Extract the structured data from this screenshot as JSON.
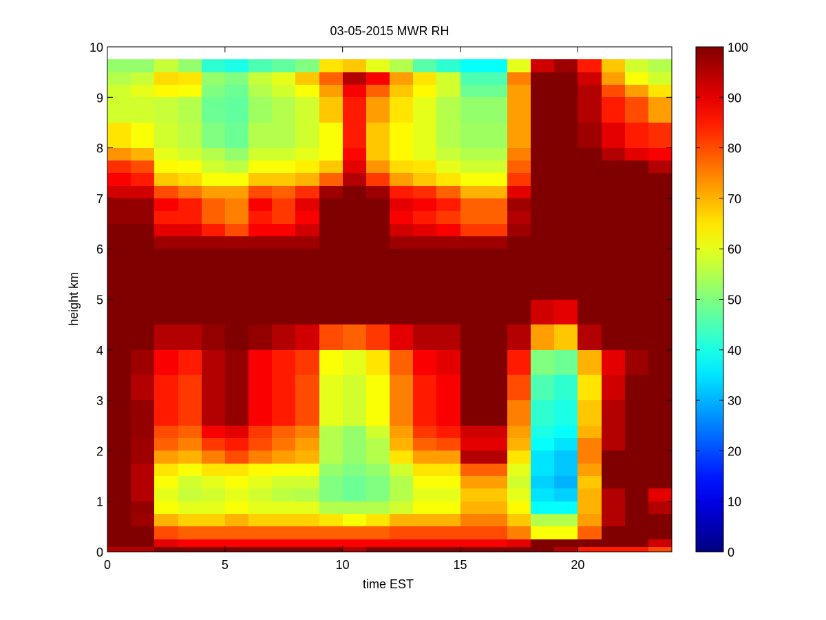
{
  "chart_data": {
    "type": "heatmap",
    "title": "03-05-2015 MWR RH",
    "xlabel": "time EST",
    "ylabel": "height km",
    "xlim": [
      0,
      24
    ],
    "ylim": [
      0,
      10
    ],
    "xticks": [
      "0",
      "5",
      "10",
      "15",
      "20"
    ],
    "yticks": [
      "0",
      "1",
      "2",
      "3",
      "4",
      "5",
      "6",
      "7",
      "8",
      "9",
      "10"
    ],
    "colorbar": {
      "ticks": [
        "0",
        "10",
        "20",
        "30",
        "40",
        "50",
        "60",
        "70",
        "80",
        "90",
        "100"
      ],
      "range": [
        0,
        100
      ],
      "colormap": "jet"
    },
    "x": [
      0,
      1,
      2,
      3,
      4,
      5,
      6,
      7,
      8,
      9,
      10,
      11,
      12,
      13,
      14,
      15,
      16,
      17,
      18,
      19,
      20,
      21,
      22,
      23
    ],
    "x_cell_width": 1,
    "y_edges": [
      0,
      0.1,
      0.25,
      0.5,
      0.75,
      1.0,
      1.25,
      1.5,
      1.75,
      2.0,
      2.25,
      2.5,
      3.0,
      3.5,
      4.0,
      4.5,
      5.0,
      5.5,
      6.0,
      6.25,
      6.5,
      6.75,
      7.0,
      7.25,
      7.5,
      7.75,
      8.0,
      8.5,
      9.0,
      9.25,
      9.5,
      9.75
    ],
    "values": [
      [
        95,
        95,
        100,
        100,
        100,
        100,
        100,
        100,
        100,
        100,
        95,
        100,
        100,
        100,
        100,
        100,
        100,
        100,
        100,
        95,
        85,
        85,
        85,
        80
      ],
      [
        100,
        100,
        90,
        88,
        88,
        88,
        88,
        88,
        88,
        88,
        88,
        88,
        88,
        88,
        88,
        88,
        88,
        90,
        100,
        100,
        100,
        100,
        100,
        92
      ],
      [
        100,
        100,
        80,
        78,
        78,
        78,
        78,
        78,
        78,
        78,
        78,
        78,
        80,
        80,
        80,
        80,
        80,
        75,
        62,
        62,
        78,
        100,
        100,
        100
      ],
      [
        100,
        97,
        70,
        67,
        67,
        70,
        67,
        67,
        67,
        65,
        62,
        65,
        70,
        70,
        70,
        75,
        75,
        68,
        55,
        55,
        72,
        95,
        100,
        100
      ],
      [
        100,
        98,
        62,
        60,
        60,
        62,
        60,
        60,
        60,
        55,
        55,
        55,
        58,
        62,
        62,
        70,
        70,
        63,
        38,
        38,
        70,
        95,
        100,
        95
      ],
      [
        100,
        95,
        60,
        57,
        58,
        60,
        58,
        56,
        55,
        50,
        48,
        50,
        55,
        60,
        60,
        68,
        68,
        60,
        35,
        33,
        70,
        95,
        100,
        90
      ],
      [
        100,
        95,
        62,
        58,
        60,
        62,
        60,
        58,
        58,
        50,
        48,
        50,
        55,
        62,
        62,
        72,
        72,
        58,
        33,
        30,
        68,
        100,
        100,
        100
      ],
      [
        100,
        95,
        65,
        62,
        65,
        65,
        63,
        62,
        62,
        52,
        50,
        52,
        58,
        65,
        65,
        78,
        78,
        60,
        35,
        32,
        72,
        100,
        100,
        100
      ],
      [
        100,
        97,
        72,
        70,
        75,
        80,
        75,
        72,
        70,
        55,
        52,
        55,
        65,
        72,
        72,
        95,
        95,
        65,
        35,
        32,
        75,
        100,
        100,
        100
      ],
      [
        100,
        97,
        78,
        75,
        82,
        85,
        80,
        76,
        72,
        55,
        52,
        55,
        70,
        78,
        80,
        90,
        90,
        70,
        38,
        35,
        75,
        95,
        100,
        100
      ],
      [
        100,
        98,
        80,
        78,
        88,
        90,
        82,
        78,
        75,
        55,
        52,
        58,
        72,
        82,
        85,
        92,
        92,
        72,
        40,
        38,
        70,
        95,
        100,
        100
      ],
      [
        100,
        98,
        85,
        82,
        95,
        98,
        88,
        85,
        80,
        60,
        58,
        62,
        75,
        85,
        88,
        100,
        100,
        75,
        42,
        40,
        68,
        95,
        100,
        100
      ],
      [
        100,
        95,
        85,
        82,
        95,
        98,
        88,
        85,
        80,
        60,
        58,
        62,
        75,
        85,
        88,
        100,
        100,
        80,
        45,
        42,
        65,
        92,
        100,
        100
      ],
      [
        100,
        97,
        88,
        85,
        95,
        98,
        88,
        85,
        82,
        62,
        60,
        65,
        78,
        88,
        90,
        100,
        100,
        85,
        50,
        48,
        70,
        90,
        97,
        100
      ],
      [
        100,
        100,
        95,
        95,
        98,
        100,
        98,
        95,
        92,
        80,
        78,
        82,
        90,
        95,
        95,
        100,
        100,
        95,
        72,
        68,
        95,
        100,
        100,
        100
      ],
      [
        100,
        100,
        100,
        100,
        100,
        100,
        100,
        100,
        100,
        100,
        100,
        100,
        100,
        100,
        100,
        100,
        100,
        100,
        92,
        90,
        100,
        100,
        100,
        100
      ],
      [
        100,
        100,
        100,
        100,
        100,
        100,
        100,
        100,
        100,
        100,
        100,
        100,
        100,
        100,
        100,
        100,
        100,
        100,
        100,
        100,
        100,
        100,
        100,
        100
      ],
      [
        100,
        100,
        100,
        100,
        100,
        100,
        100,
        100,
        100,
        100,
        100,
        100,
        100,
        100,
        100,
        100,
        100,
        100,
        100,
        100,
        100,
        100,
        100,
        100
      ],
      [
        100,
        100,
        97,
        97,
        97,
        97,
        97,
        97,
        97,
        100,
        100,
        100,
        97,
        97,
        97,
        97,
        97,
        100,
        100,
        100,
        100,
        100,
        100,
        100
      ],
      [
        100,
        100,
        90,
        90,
        85,
        80,
        88,
        88,
        92,
        100,
        100,
        100,
        92,
        90,
        88,
        82,
        82,
        97,
        100,
        100,
        100,
        100,
        100,
        100
      ],
      [
        98,
        98,
        85,
        85,
        78,
        75,
        85,
        82,
        88,
        100,
        100,
        100,
        88,
        85,
        82,
        78,
        78,
        95,
        100,
        100,
        100,
        100,
        100,
        100
      ],
      [
        98,
        98,
        88,
        85,
        78,
        75,
        88,
        82,
        90,
        100,
        100,
        100,
        90,
        88,
        85,
        78,
        78,
        97,
        100,
        100,
        100,
        100,
        100,
        100
      ],
      [
        92,
        92,
        80,
        76,
        72,
        72,
        80,
        78,
        83,
        97,
        100,
        97,
        85,
        83,
        78,
        70,
        70,
        90,
        100,
        100,
        100,
        100,
        100,
        100
      ],
      [
        88,
        85,
        68,
        66,
        62,
        62,
        68,
        68,
        70,
        78,
        95,
        82,
        72,
        68,
        65,
        62,
        62,
        82,
        100,
        100,
        100,
        100,
        100,
        100
      ],
      [
        83,
        80,
        63,
        62,
        58,
        56,
        62,
        62,
        64,
        68,
        90,
        73,
        66,
        65,
        60,
        58,
        58,
        78,
        100,
        100,
        100,
        100,
        100,
        95
      ],
      [
        73,
        70,
        60,
        58,
        55,
        52,
        58,
        58,
        60,
        62,
        87,
        68,
        63,
        60,
        57,
        55,
        55,
        75,
        100,
        100,
        100,
        95,
        90,
        88
      ],
      [
        65,
        62,
        58,
        56,
        50,
        48,
        55,
        55,
        58,
        62,
        85,
        68,
        63,
        60,
        55,
        53,
        53,
        72,
        100,
        100,
        97,
        90,
        85,
        83
      ],
      [
        58,
        58,
        57,
        55,
        48,
        47,
        53,
        55,
        58,
        68,
        85,
        72,
        65,
        60,
        55,
        52,
        52,
        72,
        100,
        100,
        95,
        85,
        80,
        72
      ],
      [
        58,
        60,
        63,
        62,
        50,
        48,
        55,
        58,
        62,
        72,
        88,
        78,
        68,
        63,
        58,
        48,
        48,
        72,
        100,
        100,
        95,
        80,
        72,
        65
      ],
      [
        55,
        57,
        66,
        65,
        52,
        50,
        57,
        60,
        68,
        78,
        95,
        88,
        72,
        65,
        58,
        45,
        45,
        75,
        100,
        100,
        92,
        72,
        62,
        58
      ],
      [
        52,
        52,
        57,
        52,
        42,
        40,
        45,
        47,
        50,
        65,
        68,
        60,
        55,
        46,
        42,
        38,
        38,
        60,
        92,
        97,
        85,
        68,
        58,
        55
      ]
    ]
  }
}
